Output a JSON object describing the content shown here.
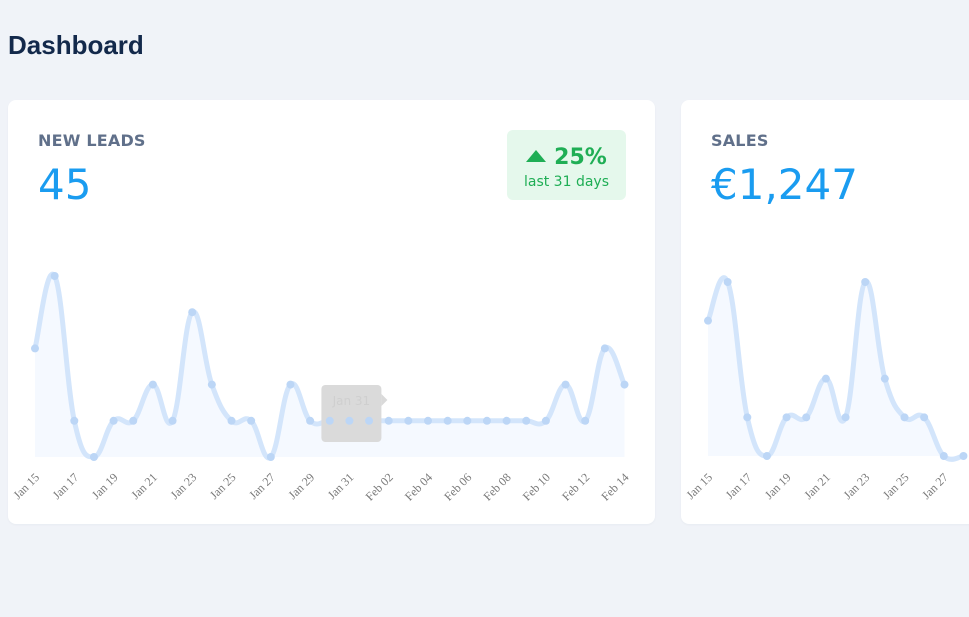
{
  "header": {
    "title": "Dashboard"
  },
  "cards": [
    {
      "label": "NEW LEADS",
      "value": "45",
      "trend": {
        "value": "25%",
        "period": "last 31 days",
        "direction": "up",
        "color": "#1fae55"
      }
    },
    {
      "label": "SALES",
      "value": "€1,247"
    }
  ],
  "tooltip": {
    "label": "Jan 31"
  },
  "colors": {
    "line": "#d3e5fb",
    "fill": "#f5f9ff",
    "value": "#1a9cf0",
    "title": "#13294b",
    "trend_bg": "#e5f8ec"
  },
  "chart_data": [
    {
      "type": "line",
      "title": "NEW LEADS",
      "x": [
        "Jan 15",
        "Jan 16",
        "Jan 17",
        "Jan 18",
        "Jan 19",
        "Jan 20",
        "Jan 21",
        "Jan 22",
        "Jan 23",
        "Jan 24",
        "Jan 25",
        "Jan 26",
        "Jan 27",
        "Jan 28",
        "Jan 29",
        "Jan 30",
        "Jan 31",
        "Feb 01",
        "Feb 02",
        "Feb 03",
        "Feb 04",
        "Feb 05",
        "Feb 06",
        "Feb 07",
        "Feb 08",
        "Feb 09",
        "Feb 10",
        "Feb 11",
        "Feb 12",
        "Feb 13",
        "Feb 14"
      ],
      "values": [
        3,
        5,
        1,
        0,
        1,
        1,
        2,
        1,
        4,
        2,
        1,
        1,
        0,
        2,
        1,
        1,
        1,
        1,
        1,
        1,
        1,
        1,
        1,
        1,
        1,
        1,
        1,
        2,
        1,
        3,
        2
      ],
      "tick_labels": [
        "Jan 15",
        "Jan 17",
        "Jan 19",
        "Jan 21",
        "Jan 23",
        "Jan 25",
        "Jan 27",
        "Jan 29",
        "Jan 31",
        "Feb 02",
        "Feb 04",
        "Feb 06",
        "Feb 08",
        "Feb 10",
        "Feb 12",
        "Feb 14"
      ],
      "ylim": [
        0,
        5
      ],
      "grid": false
    },
    {
      "type": "line",
      "title": "SALES",
      "x": [
        "Jan 15",
        "Jan 16",
        "Jan 17",
        "Jan 18",
        "Jan 19",
        "Jan 20",
        "Jan 21",
        "Jan 22",
        "Jan 23",
        "Jan 24",
        "Jan 25",
        "Jan 26",
        "Jan 27",
        "Jan 28"
      ],
      "values": [
        7,
        9,
        2,
        0,
        2,
        2,
        4,
        2,
        9,
        4,
        2,
        2,
        0,
        0
      ],
      "tick_labels": [
        "Jan 15",
        "Jan 17",
        "Jan 19",
        "Jan 21",
        "Jan 23",
        "Jan 25",
        "Jan 27"
      ],
      "ylim": [
        0,
        9
      ],
      "grid": false
    }
  ]
}
